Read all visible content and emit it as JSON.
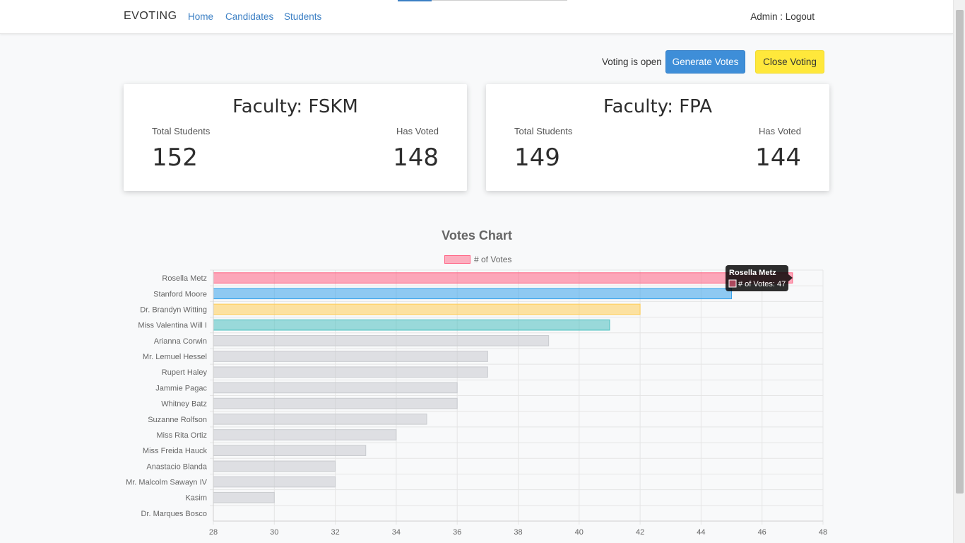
{
  "nav": {
    "brand": "EVOTING",
    "links": [
      "Home",
      "Candidates",
      "Students"
    ],
    "admin_label": "Admin : Logout"
  },
  "actions": {
    "status": "Voting is open",
    "generate_label": "Generate Votes",
    "close_label": "Close Voting"
  },
  "faculties": [
    {
      "title": "Faculty: FSKM",
      "total_label": "Total Students",
      "voted_label": "Has Voted",
      "total": "152",
      "voted": "148"
    },
    {
      "title": "Faculty: FPA",
      "total_label": "Total Students",
      "voted_label": "Has Voted",
      "total": "149",
      "voted": "144"
    }
  ],
  "chart_data": {
    "type": "bar",
    "orientation": "horizontal",
    "title": "Votes Chart",
    "legend": [
      "# of Votes"
    ],
    "legend_position": "top",
    "categories": [
      "Rosella Metz",
      "Stanford Moore",
      "Dr. Brandyn Witting",
      "Miss Valentina Will I",
      "Arianna Corwin",
      "Mr. Lemuel Hessel",
      "Rupert Haley",
      "Jammie Pagac",
      "Whitney Batz",
      "Suzanne Rolfson",
      "Miss Rita Ortiz",
      "Miss Freida Hauck",
      "Anastacio Blanda",
      "Mr. Malcolm Sawayn IV",
      "Kasim",
      "Dr. Marques Bosco"
    ],
    "series": [
      {
        "name": "# of Votes",
        "values": [
          47,
          45,
          42,
          41,
          39,
          37,
          37,
          36,
          36,
          35,
          34,
          33,
          32,
          32,
          30,
          28
        ]
      }
    ],
    "bar_colors": [
      "#ff6384",
      "#36a2eb",
      "#ffcd56",
      "#4bc0c0"
    ],
    "default_bar_color": "#c9cbcf",
    "xlim": [
      28,
      48
    ],
    "xticks": [
      28,
      30,
      32,
      34,
      36,
      38,
      40,
      42,
      44,
      46,
      48
    ],
    "grid": true,
    "tooltip": {
      "title": "Rosella Metz",
      "body": "# of Votes: 47"
    }
  }
}
